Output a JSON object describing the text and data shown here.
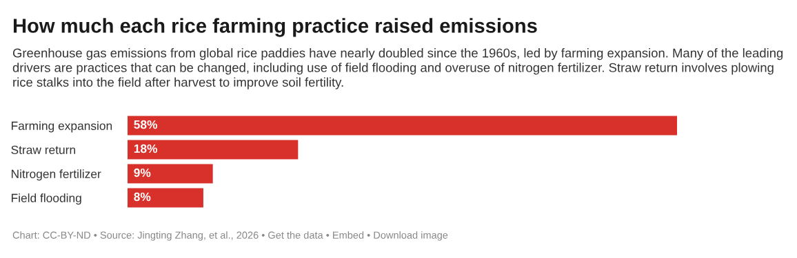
{
  "chart_data": {
    "type": "bar",
    "orientation": "horizontal",
    "title": "How much each rice farming practice raised emissions",
    "subtitle": "Greenhouse gas emissions from global rice paddies have nearly doubled since the 1960s, led by farming expansion. Many of the leading drivers are practices that can be changed, including use of field flooding and overuse of nitrogen fertilizer. Straw return involves plowing rice stalks into the field after harvest to improve soil fertility.",
    "categories": [
      "Farming expansion",
      "Straw return",
      "Nitrogen fertilizer",
      "Field flooding"
    ],
    "values": [
      58,
      18,
      9,
      8
    ],
    "value_labels": [
      "58%",
      "18%",
      "9%",
      "8%"
    ],
    "color": "#d8312b",
    "tick_labels": "y",
    "grid": false,
    "legend": false,
    "annotations": [
      "Chart: CC-BY-ND • Source: Jingting Zhang, et al., 2026 • Get the data • Embed • Download image"
    ]
  }
}
